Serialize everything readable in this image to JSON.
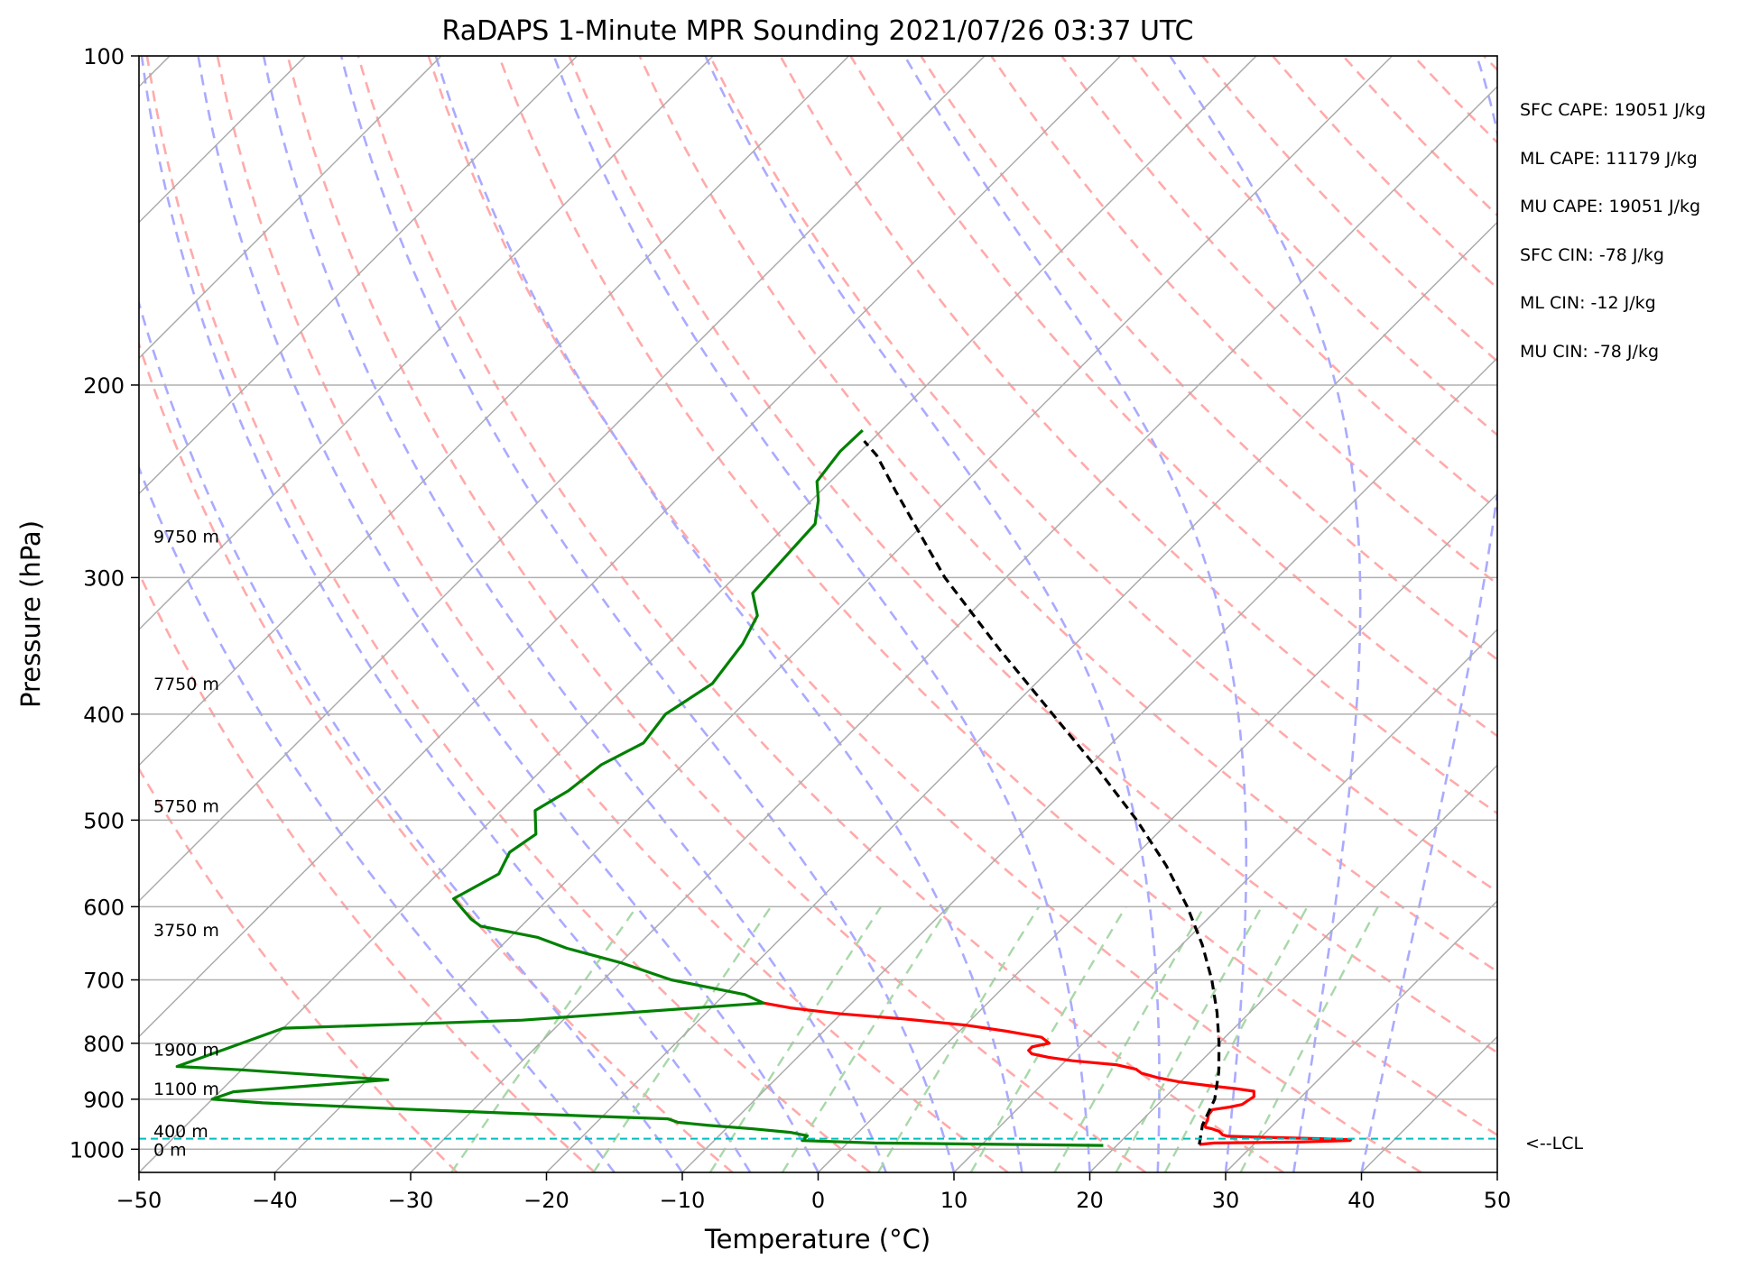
{
  "chart_data": {
    "type": "line",
    "title": "RaDAPS 1-Minute MPR Sounding 2021/07/26 03:37 UTC",
    "xlabel": "Temperature (°C)",
    "ylabel": "Pressure (hPa)",
    "xlim": [
      -50,
      50
    ],
    "ylim": [
      1050,
      100
    ],
    "y_scale": "log",
    "x_ticks": [
      -50,
      -40,
      -30,
      -20,
      -10,
      0,
      10,
      20,
      30,
      40,
      50
    ],
    "x_tick_labels": [
      "−50",
      "−40",
      "−30",
      "−20",
      "−10",
      "0",
      "10",
      "20",
      "30",
      "40",
      "50"
    ],
    "y_ticks": [
      100,
      200,
      300,
      400,
      500,
      600,
      700,
      800,
      900,
      1000
    ],
    "y_tick_labels": [
      "100",
      "200",
      "300",
      "400",
      "500",
      "600",
      "700",
      "800",
      "900",
      "1000"
    ],
    "grid": true,
    "skew": "skew-T (isotherms slanted 45°)",
    "series": [
      {
        "role": "temperature",
        "color": "#ff0000",
        "points": [
          [
            26,
            990
          ],
          [
            27,
            987
          ],
          [
            30,
            986
          ],
          [
            33,
            985
          ],
          [
            36.8,
            982
          ],
          [
            36.8,
            980
          ],
          [
            34.5,
            978
          ],
          [
            30,
            975
          ],
          [
            27.5,
            973
          ],
          [
            27,
            970
          ],
          [
            26.5,
            963
          ],
          [
            25.8,
            958
          ],
          [
            25.2,
            955
          ],
          [
            25.0,
            950
          ],
          [
            24.8,
            940
          ],
          [
            24.5,
            930
          ],
          [
            24.4,
            920
          ],
          [
            25.5,
            915
          ],
          [
            26.2,
            910
          ],
          [
            26.5,
            895
          ],
          [
            26.1,
            885
          ],
          [
            24.5,
            880
          ],
          [
            22.5,
            875
          ],
          [
            20.0,
            868
          ],
          [
            18.0,
            860
          ],
          [
            16.5,
            852
          ],
          [
            15.8,
            845
          ],
          [
            14.0,
            837
          ],
          [
            10.5,
            830
          ],
          [
            8.5,
            824
          ],
          [
            7.0,
            818
          ],
          [
            6.5,
            812
          ],
          [
            6.5,
            806
          ],
          [
            7.5,
            800
          ],
          [
            6.5,
            790
          ],
          [
            3.5,
            780
          ],
          [
            0.0,
            770
          ],
          [
            -5.0,
            760
          ],
          [
            -10.0,
            752
          ],
          [
            -14.0,
            743
          ],
          [
            -16.5,
            735
          ]
        ]
      },
      {
        "role": "dewpoint",
        "color": "#008000",
        "points": [
          [
            19,
            992
          ],
          [
            2,
            987
          ],
          [
            -3.5,
            982
          ],
          [
            -3.5,
            972
          ],
          [
            -5.0,
            965
          ],
          [
            -8.0,
            958
          ],
          [
            -11.5,
            951
          ],
          [
            -14.0,
            945
          ],
          [
            -15.0,
            938
          ],
          [
            -27.0,
            927
          ],
          [
            -36.0,
            918
          ],
          [
            -46.0,
            907
          ],
          [
            -50,
            900
          ],
          [
            -49,
            886
          ],
          [
            -38.5,
            864
          ],
          [
            -50,
            846
          ],
          [
            -55,
            840
          ],
          [
            -50,
            775
          ],
          [
            -33,
            762
          ],
          [
            -16.5,
            735
          ],
          [
            -18.5,
            722
          ],
          [
            -25.0,
            700
          ],
          [
            -30,
            675
          ],
          [
            -35,
            655
          ],
          [
            -38,
            640
          ],
          [
            -43,
            625
          ],
          [
            -44.2,
            616
          ],
          [
            -47.0,
            590
          ],
          [
            -45.5,
            560
          ],
          [
            -46.3,
            535
          ],
          [
            -45.7,
            515
          ],
          [
            -47.5,
            490
          ],
          [
            -46.5,
            470
          ],
          [
            -46.0,
            445
          ],
          [
            -44.5,
            425
          ],
          [
            -45.0,
            400
          ],
          [
            -43.8,
            375
          ],
          [
            -44.5,
            345
          ],
          [
            -45.5,
            325
          ],
          [
            -47.5,
            310
          ],
          [
            -47.8,
            285
          ],
          [
            -48.0,
            268
          ],
          [
            -49.5,
            255
          ],
          [
            -51.0,
            245
          ],
          [
            -51.5,
            230
          ],
          [
            -51.4,
            220
          ]
        ]
      },
      {
        "role": "parcel",
        "color": "#000000",
        "dashed": true,
        "points": [
          [
            26,
            990
          ],
          [
            24.8,
            950
          ],
          [
            23.8,
            900
          ],
          [
            22.1,
            850
          ],
          [
            20.0,
            800
          ],
          [
            17.6,
            750
          ],
          [
            14.8,
            700
          ],
          [
            11.5,
            650
          ],
          [
            7.6,
            600
          ],
          [
            3.0,
            550
          ],
          [
            -2.5,
            500
          ],
          [
            -9.0,
            450
          ],
          [
            -16.5,
            400
          ],
          [
            -25.0,
            350
          ],
          [
            -34.5,
            300
          ],
          [
            -44.5,
            250
          ],
          [
            -48.5,
            232
          ],
          [
            -50.5,
            225
          ]
        ]
      }
    ],
    "lcl": {
      "pressure": 978,
      "label": "<--LCL",
      "color": "#00bfbf"
    },
    "height_labels": [
      {
        "text": "9750 m",
        "pressure": 275
      },
      {
        "text": "7750 m",
        "pressure": 375
      },
      {
        "text": "5750 m",
        "pressure": 485
      },
      {
        "text": "3750 m",
        "pressure": 630
      },
      {
        "text": "1900 m",
        "pressure": 810
      },
      {
        "text": "1100 m",
        "pressure": 880
      },
      {
        "text": "400 m",
        "pressure": 962
      },
      {
        "text": "0 m",
        "pressure": 1000
      }
    ],
    "annotations": [
      "SFC CAPE: 19051 J/kg",
      "ML CAPE: 11179 J/kg",
      "MU CAPE: 19051 J/kg",
      "SFC CIN: -78 J/kg",
      "ML CIN: -12 J/kg",
      "MU CIN: -78 J/kg"
    ],
    "colors": {
      "isotherm": "#aaaaaa",
      "dry_adiabat": "#ffaaaa",
      "moist_adiabat": "#aaaaff",
      "mixing_ratio": "#a8d8a8"
    }
  }
}
